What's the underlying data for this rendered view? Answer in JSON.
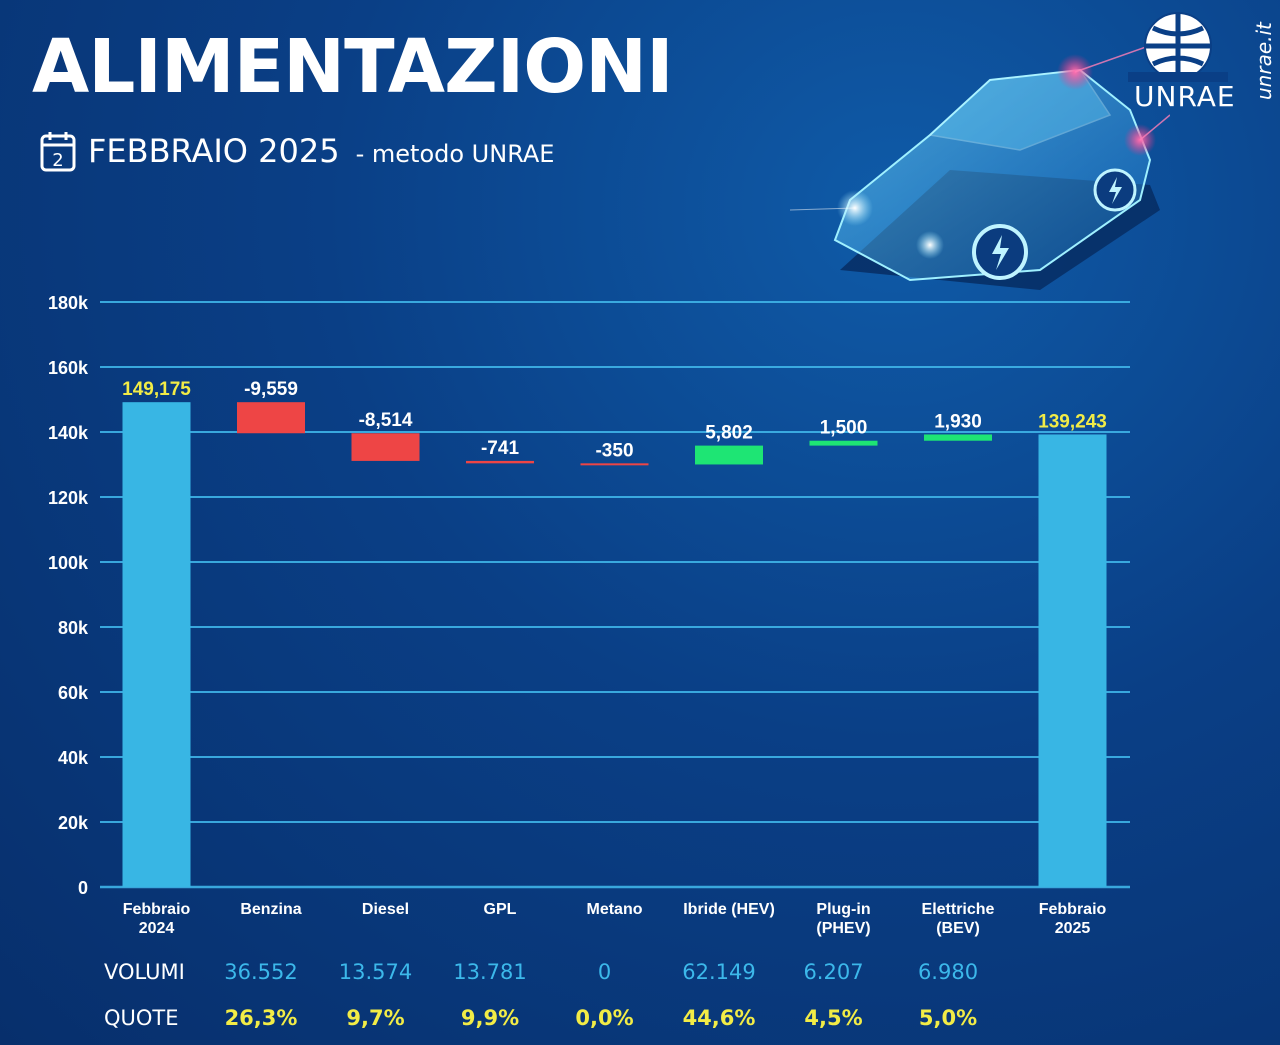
{
  "header": {
    "title": "ALIMENTAZIONI",
    "calendar_number": "2",
    "subtitle": "FEBBRAIO 2025",
    "method": "- metodo UNRAE"
  },
  "brand": {
    "logo_text": "UNRAE",
    "site": "unrae.it"
  },
  "colors": {
    "total_bar": "#38b6e4",
    "decrease": "#ee4545",
    "increase": "#1ee574",
    "gridline": "#3fb4e8",
    "total_label": "#f2ec46"
  },
  "chart_data": {
    "type": "bar",
    "subtype": "waterfall",
    "categories": [
      "Febbraio\n2024",
      "Benzina",
      "Diesel",
      "GPL",
      "Metano",
      "Ibride (HEV)",
      "Plug-in\n(PHEV)",
      "Elettriche\n(BEV)",
      "Febbraio\n2025"
    ],
    "values": [
      149175,
      -9559,
      -8514,
      -741,
      -350,
      5802,
      1500,
      1930,
      139243
    ],
    "kinds": [
      "total",
      "delta",
      "delta",
      "delta",
      "delta",
      "delta",
      "delta",
      "delta",
      "total"
    ],
    "data_labels": [
      "149,175",
      "-9,559",
      "-8,514",
      "-741",
      "-350",
      "5,802",
      "1,500",
      "1,930",
      "139,243"
    ],
    "ylim": [
      0,
      180000
    ],
    "yticks": [
      0,
      20000,
      40000,
      60000,
      80000,
      100000,
      120000,
      140000,
      160000,
      180000
    ],
    "ytick_labels": [
      "0",
      "20k",
      "40k",
      "60k",
      "80k",
      "100k",
      "120k",
      "140k",
      "160k",
      "180k"
    ],
    "grid": true,
    "legend": "none"
  },
  "table": {
    "volumi_label": "VOLUMI",
    "quote_label": "QUOTE",
    "volumi": [
      "36.552",
      "13.574",
      "13.781",
      "0",
      "62.149",
      "6.207",
      "6.980"
    ],
    "quote": [
      "26,3%",
      "9,7%",
      "9,9%",
      "0,0%",
      "44,6%",
      "4,5%",
      "5,0%"
    ]
  }
}
